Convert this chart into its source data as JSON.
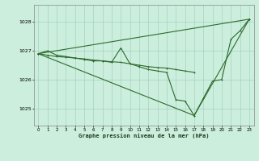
{
  "title": "Graphe pression niveau de la mer (hPa)",
  "bg_color": "#cceedd",
  "grid_color": "#99ccbb",
  "line_color": "#2d6a2d",
  "xlim": [
    -0.5,
    23.5
  ],
  "ylim": [
    1024.4,
    1028.6
  ],
  "yticks": [
    1025,
    1026,
    1027,
    1028
  ],
  "xticks": [
    0,
    1,
    2,
    3,
    4,
    5,
    6,
    7,
    8,
    9,
    10,
    11,
    12,
    13,
    14,
    15,
    16,
    17,
    18,
    19,
    20,
    21,
    22,
    23
  ],
  "series_main": [
    [
      0,
      1026.9
    ],
    [
      1,
      1027.0
    ],
    [
      2,
      1026.85
    ],
    [
      3,
      1026.8
    ],
    [
      4,
      1026.75
    ],
    [
      5,
      1026.7
    ],
    [
      6,
      1026.65
    ],
    [
      7,
      1026.65
    ],
    [
      8,
      1026.6
    ],
    [
      9,
      1027.1
    ],
    [
      10,
      1026.55
    ],
    [
      11,
      1026.45
    ],
    [
      12,
      1026.35
    ],
    [
      13,
      1026.3
    ],
    [
      14,
      1026.25
    ],
    [
      15,
      1025.3
    ],
    [
      16,
      1025.25
    ],
    [
      17,
      1024.75
    ],
    [
      18,
      1025.35
    ],
    [
      19,
      1025.95
    ],
    [
      20,
      1026.0
    ],
    [
      21,
      1027.4
    ],
    [
      22,
      1027.7
    ],
    [
      23,
      1028.1
    ]
  ],
  "series_upper": [
    [
      0,
      1026.9
    ],
    [
      23,
      1028.1
    ]
  ],
  "series_lower": [
    [
      0,
      1026.9
    ],
    [
      17,
      1024.75
    ],
    [
      23,
      1028.1
    ]
  ],
  "series_flat": [
    [
      0,
      1026.9
    ],
    [
      1,
      1026.85
    ],
    [
      2,
      1026.8
    ],
    [
      3,
      1026.78
    ],
    [
      4,
      1026.75
    ],
    [
      5,
      1026.72
    ],
    [
      6,
      1026.68
    ],
    [
      7,
      1026.65
    ],
    [
      8,
      1026.62
    ],
    [
      9,
      1026.6
    ],
    [
      10,
      1026.55
    ],
    [
      11,
      1026.5
    ],
    [
      12,
      1026.45
    ],
    [
      13,
      1026.42
    ],
    [
      14,
      1026.4
    ],
    [
      15,
      1026.35
    ],
    [
      16,
      1026.3
    ],
    [
      17,
      1026.25
    ]
  ]
}
